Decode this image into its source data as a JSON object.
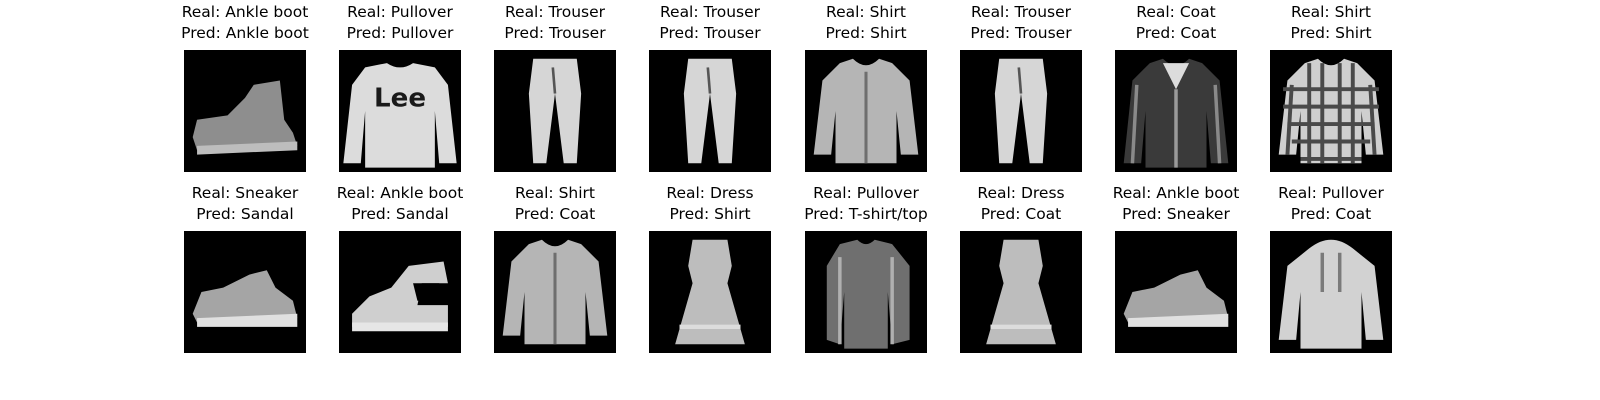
{
  "figure": {
    "panels": [
      {
        "real": "Real: Ankle boot",
        "pred": "Pred: Ankle boot",
        "icon": "ankle-boot-icon"
      },
      {
        "real": "Real: Pullover",
        "pred": "Pred: Pullover",
        "icon": "pullover-lee-icon",
        "logo_text": "Lee"
      },
      {
        "real": "Real: Trouser",
        "pred": "Pred: Trouser",
        "icon": "trouser-icon"
      },
      {
        "real": "Real: Trouser",
        "pred": "Pred: Trouser",
        "icon": "trouser-icon"
      },
      {
        "real": "Real: Shirt",
        "pred": "Pred: Shirt",
        "icon": "shirt-icon"
      },
      {
        "real": "Real: Trouser",
        "pred": "Pred: Trouser",
        "icon": "trouser-icon"
      },
      {
        "real": "Real: Coat",
        "pred": "Pred: Coat",
        "icon": "coat-icon"
      },
      {
        "real": "Real: Shirt",
        "pred": "Pred: Shirt",
        "icon": "plaid-shirt-icon"
      },
      {
        "real": "Real: Sneaker",
        "pred": "Pred: Sandal",
        "icon": "sneaker-icon"
      },
      {
        "real": "Real: Ankle boot",
        "pred": "Pred: Sandal",
        "icon": "sandal-boot-icon"
      },
      {
        "real": "Real: Shirt",
        "pred": "Pred: Coat",
        "icon": "shirt-icon"
      },
      {
        "real": "Real: Dress",
        "pred": "Pred: Shirt",
        "icon": "dress-icon"
      },
      {
        "real": "Real: Pullover",
        "pred": "Pred: T-shirt/top",
        "icon": "pullover-icon"
      },
      {
        "real": "Real: Dress",
        "pred": "Pred: Coat",
        "icon": "dress-icon"
      },
      {
        "real": "Real: Ankle boot",
        "pred": "Pred: Sneaker",
        "icon": "sneaker-icon"
      },
      {
        "real": "Real: Pullover",
        "pred": "Pred: Coat",
        "icon": "hoodie-icon"
      }
    ],
    "colors": {
      "background": "#ffffff",
      "thumbnail_bg": "#000000",
      "garment_light": "#d8d8d8",
      "garment_dark": "#8a8a8a"
    }
  }
}
